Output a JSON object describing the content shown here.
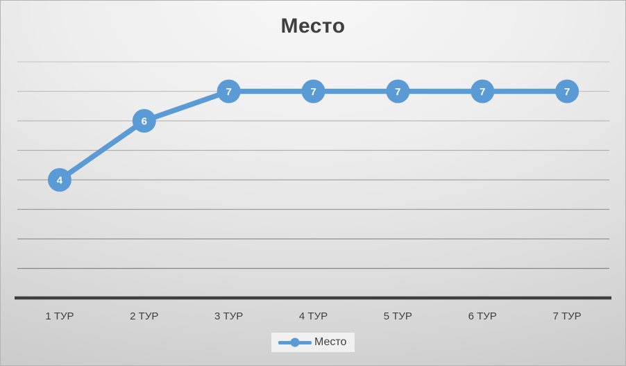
{
  "chart_data": {
    "type": "line",
    "title": "Место",
    "categories": [
      "1 ТУР",
      "2 ТУР",
      "3 ТУР",
      "4 ТУР",
      "5 ТУР",
      "6 ТУР",
      "7 ТУР"
    ],
    "series": [
      {
        "name": "Место",
        "values": [
          4,
          6,
          7,
          7,
          7,
          7,
          7
        ]
      }
    ],
    "data_labels_visible": true,
    "xlabel": "",
    "ylabel": "",
    "ylim": [
      0,
      8
    ],
    "y_major_unit": 1,
    "y_tick_labels_visible": false,
    "grid": true,
    "legend": {
      "position": "bottom",
      "entries": [
        "Место"
      ]
    },
    "colors": {
      "series": "#5B9BD5",
      "title_text": "#3f3f3f",
      "axis_text": "#3f3f3f",
      "axis_line": "#3f3f3f",
      "data_label_text": "#ffffff",
      "legend_box_bg": "#f0f0f0"
    }
  }
}
